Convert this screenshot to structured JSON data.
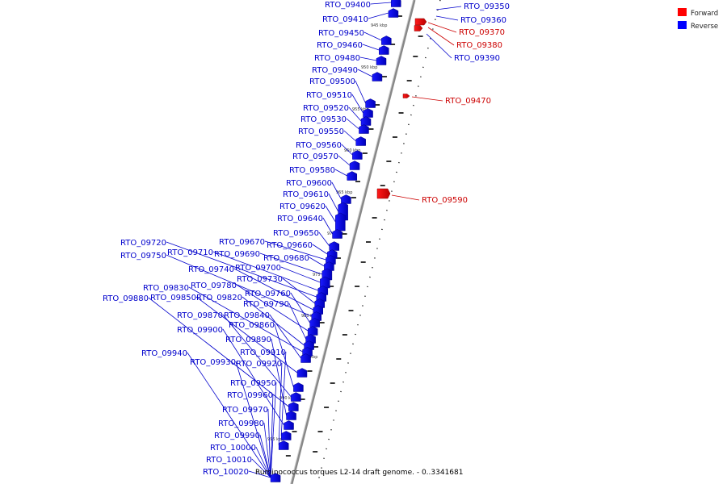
{
  "diagram": {
    "caption": "Ruminococcus torques L2-14 draft genome. - 0..3341681",
    "legend": [
      {
        "label": "Forward",
        "color": "#ff0000"
      },
      {
        "label": "Reverse",
        "color": "#0000ff"
      }
    ],
    "tick_labels": [
      "945 kbp",
      "950 kbp",
      "955 kbp",
      "960 kbp",
      "965 kbp",
      "970 kbp",
      "975 kbp",
      "980 kbp",
      "985 kbp",
      "990 kbp",
      "995 kbp"
    ],
    "forward_genes": [
      "RTO_09350",
      "RTO_09360",
      "RTO_09370",
      "RTO_09380",
      "RTO_09390",
      "RTO_09470",
      "RTO_09590"
    ],
    "reverse_genes": [
      "RTO_09400",
      "RTO_09410",
      "RTO_09450",
      "RTO_09460",
      "RTO_09480",
      "RTO_09490",
      "RTO_09500",
      "RTO_09510",
      "RTO_09520",
      "RTO_09530",
      "RTO_09550",
      "RTO_09560",
      "RTO_09570",
      "RTO_09580",
      "RTO_09600",
      "RTO_09610",
      "RTO_09620",
      "RTO_09640",
      "RTO_09650",
      "RTO_09660",
      "RTO_09670",
      "RTO_09680",
      "RTO_09690",
      "RTO_09700",
      "RTO_09710",
      "RTO_09720",
      "RTO_09730",
      "RTO_09740",
      "RTO_09750",
      "RTO_09760",
      "RTO_09780",
      "RTO_09790",
      "RTO_09820",
      "RTO_09830",
      "RTO_09840",
      "RTO_09850",
      "RTO_09860",
      "RTO_09870",
      "RTO_09880",
      "RTO_09890",
      "RTO_09900",
      "RTO_09910",
      "RTO_09920",
      "RTO_09930",
      "RTO_09940",
      "RTO_09950",
      "RTO_09960",
      "RTO_09970",
      "RTO_09980",
      "RTO_09990",
      "RTO_10000",
      "RTO_10010",
      "RTO_10020"
    ]
  }
}
